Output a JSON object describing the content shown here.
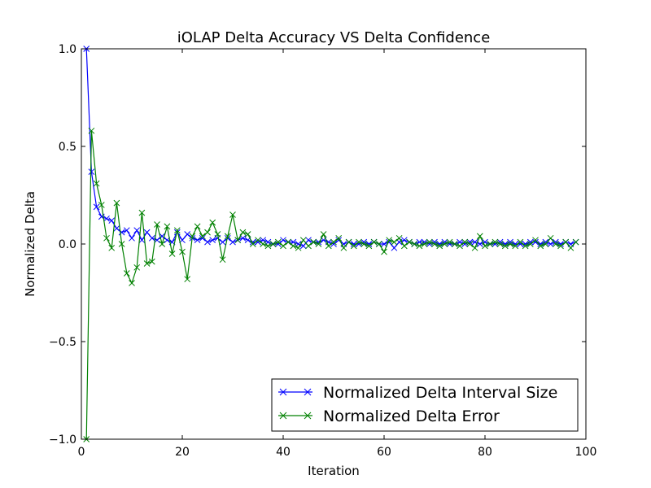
{
  "chart_data": {
    "type": "line",
    "title": "iOLAP Delta Accuracy VS Delta Confidence",
    "xlabel": "Iteration",
    "ylabel": "Normalized Delta",
    "xlim": [
      0,
      100
    ],
    "ylim": [
      -1.0,
      1.0
    ],
    "xticks": [
      0,
      20,
      40,
      60,
      80,
      100
    ],
    "yticks": [
      -1.0,
      -0.5,
      0.0,
      0.5,
      1.0
    ],
    "xtick_labels": [
      "0",
      "20",
      "40",
      "60",
      "80",
      "100"
    ],
    "ytick_labels": [
      "−1.0",
      "−0.5",
      "0.0",
      "0.5",
      "1.0"
    ],
    "grid": false,
    "legend_position": "lower-right",
    "marker": "x",
    "series": [
      {
        "name": "Normalized Delta Interval Size",
        "color": "#0000ff",
        "x": [
          1,
          2,
          3,
          4,
          5,
          6,
          7,
          8,
          9,
          10,
          11,
          12,
          13,
          14,
          15,
          16,
          17,
          18,
          19,
          20,
          21,
          22,
          23,
          24,
          25,
          26,
          27,
          28,
          29,
          30,
          31,
          32,
          33,
          34,
          35,
          36,
          37,
          38,
          39,
          40,
          41,
          42,
          43,
          44,
          45,
          46,
          47,
          48,
          49,
          50,
          51,
          52,
          53,
          54,
          55,
          56,
          57,
          58,
          59,
          60,
          61,
          62,
          63,
          64,
          65,
          66,
          67,
          68,
          69,
          70,
          71,
          72,
          73,
          74,
          75,
          76,
          77,
          78,
          79,
          80,
          81,
          82,
          83,
          84,
          85,
          86,
          87,
          88,
          89,
          90,
          91,
          92,
          93,
          94,
          95,
          96,
          97,
          98
        ],
        "values": [
          1.0,
          0.37,
          0.19,
          0.14,
          0.13,
          0.12,
          0.08,
          0.06,
          0.07,
          0.03,
          0.07,
          0.02,
          0.06,
          0.03,
          0.02,
          0.04,
          0.02,
          0.01,
          0.06,
          0.02,
          0.05,
          0.03,
          0.02,
          0.03,
          0.01,
          0.02,
          0.03,
          0.01,
          0.03,
          0.01,
          0.02,
          0.03,
          0.02,
          0.01,
          0.01,
          0.02,
          0.01,
          0.0,
          0.0,
          0.02,
          0.01,
          0.01,
          0.0,
          -0.01,
          0.02,
          0.01,
          0.01,
          0.02,
          0.01,
          0.0,
          0.02,
          0.0,
          0.01,
          0.0,
          0.0,
          0.01,
          0.0,
          0.01,
          0.0,
          0.0,
          0.01,
          -0.02,
          0.01,
          0.02,
          0.01,
          0.0,
          0.01,
          0.01,
          0.0,
          0.01,
          0.0,
          0.01,
          0.0,
          0.0,
          0.01,
          0.0,
          0.01,
          0.01,
          0.0,
          0.01,
          0.0,
          0.0,
          0.01,
          0.0,
          0.01,
          0.0,
          0.0,
          0.0,
          0.01,
          0.01,
          0.0,
          0.01,
          0.0,
          0.01,
          0.0,
          0.01,
          0.0,
          0.01
        ]
      },
      {
        "name": "Normalized Delta Error",
        "color": "#008000",
        "x": [
          1,
          2,
          3,
          4,
          5,
          6,
          7,
          8,
          9,
          10,
          11,
          12,
          13,
          14,
          15,
          16,
          17,
          18,
          19,
          20,
          21,
          22,
          23,
          24,
          25,
          26,
          27,
          28,
          29,
          30,
          31,
          32,
          33,
          34,
          35,
          36,
          37,
          38,
          39,
          40,
          41,
          42,
          43,
          44,
          45,
          46,
          47,
          48,
          49,
          50,
          51,
          52,
          53,
          54,
          55,
          56,
          57,
          58,
          59,
          60,
          61,
          62,
          63,
          64,
          65,
          66,
          67,
          68,
          69,
          70,
          71,
          72,
          73,
          74,
          75,
          76,
          77,
          78,
          79,
          80,
          81,
          82,
          83,
          84,
          85,
          86,
          87,
          88,
          89,
          90,
          91,
          92,
          93,
          94,
          95,
          96,
          97,
          98
        ],
        "values": [
          -1.0,
          0.58,
          0.31,
          0.2,
          0.03,
          -0.02,
          0.21,
          0.0,
          -0.15,
          -0.2,
          -0.12,
          0.16,
          -0.1,
          -0.09,
          0.1,
          0.0,
          0.09,
          -0.05,
          0.07,
          -0.04,
          -0.18,
          0.04,
          0.09,
          0.04,
          0.06,
          0.11,
          0.05,
          -0.08,
          0.04,
          0.15,
          0.02,
          0.06,
          0.05,
          0.0,
          0.02,
          0.0,
          -0.01,
          0.0,
          0.01,
          -0.01,
          0.01,
          -0.01,
          -0.02,
          0.02,
          -0.01,
          0.01,
          0.0,
          0.05,
          -0.01,
          0.01,
          0.03,
          -0.02,
          0.01,
          -0.01,
          0.01,
          0.0,
          -0.01,
          0.01,
          0.0,
          -0.04,
          0.02,
          0.01,
          0.03,
          -0.01,
          0.01,
          0.0,
          -0.01,
          0.0,
          0.01,
          0.0,
          -0.01,
          0.0,
          0.01,
          0.0,
          -0.01,
          0.01,
          0.0,
          -0.02,
          0.04,
          -0.01,
          0.0,
          0.01,
          0.0,
          -0.01,
          0.0,
          -0.01,
          0.01,
          -0.01,
          0.0,
          0.02,
          -0.01,
          0.0,
          0.03,
          0.0,
          -0.01,
          0.01,
          -0.02,
          0.01
        ]
      }
    ]
  }
}
